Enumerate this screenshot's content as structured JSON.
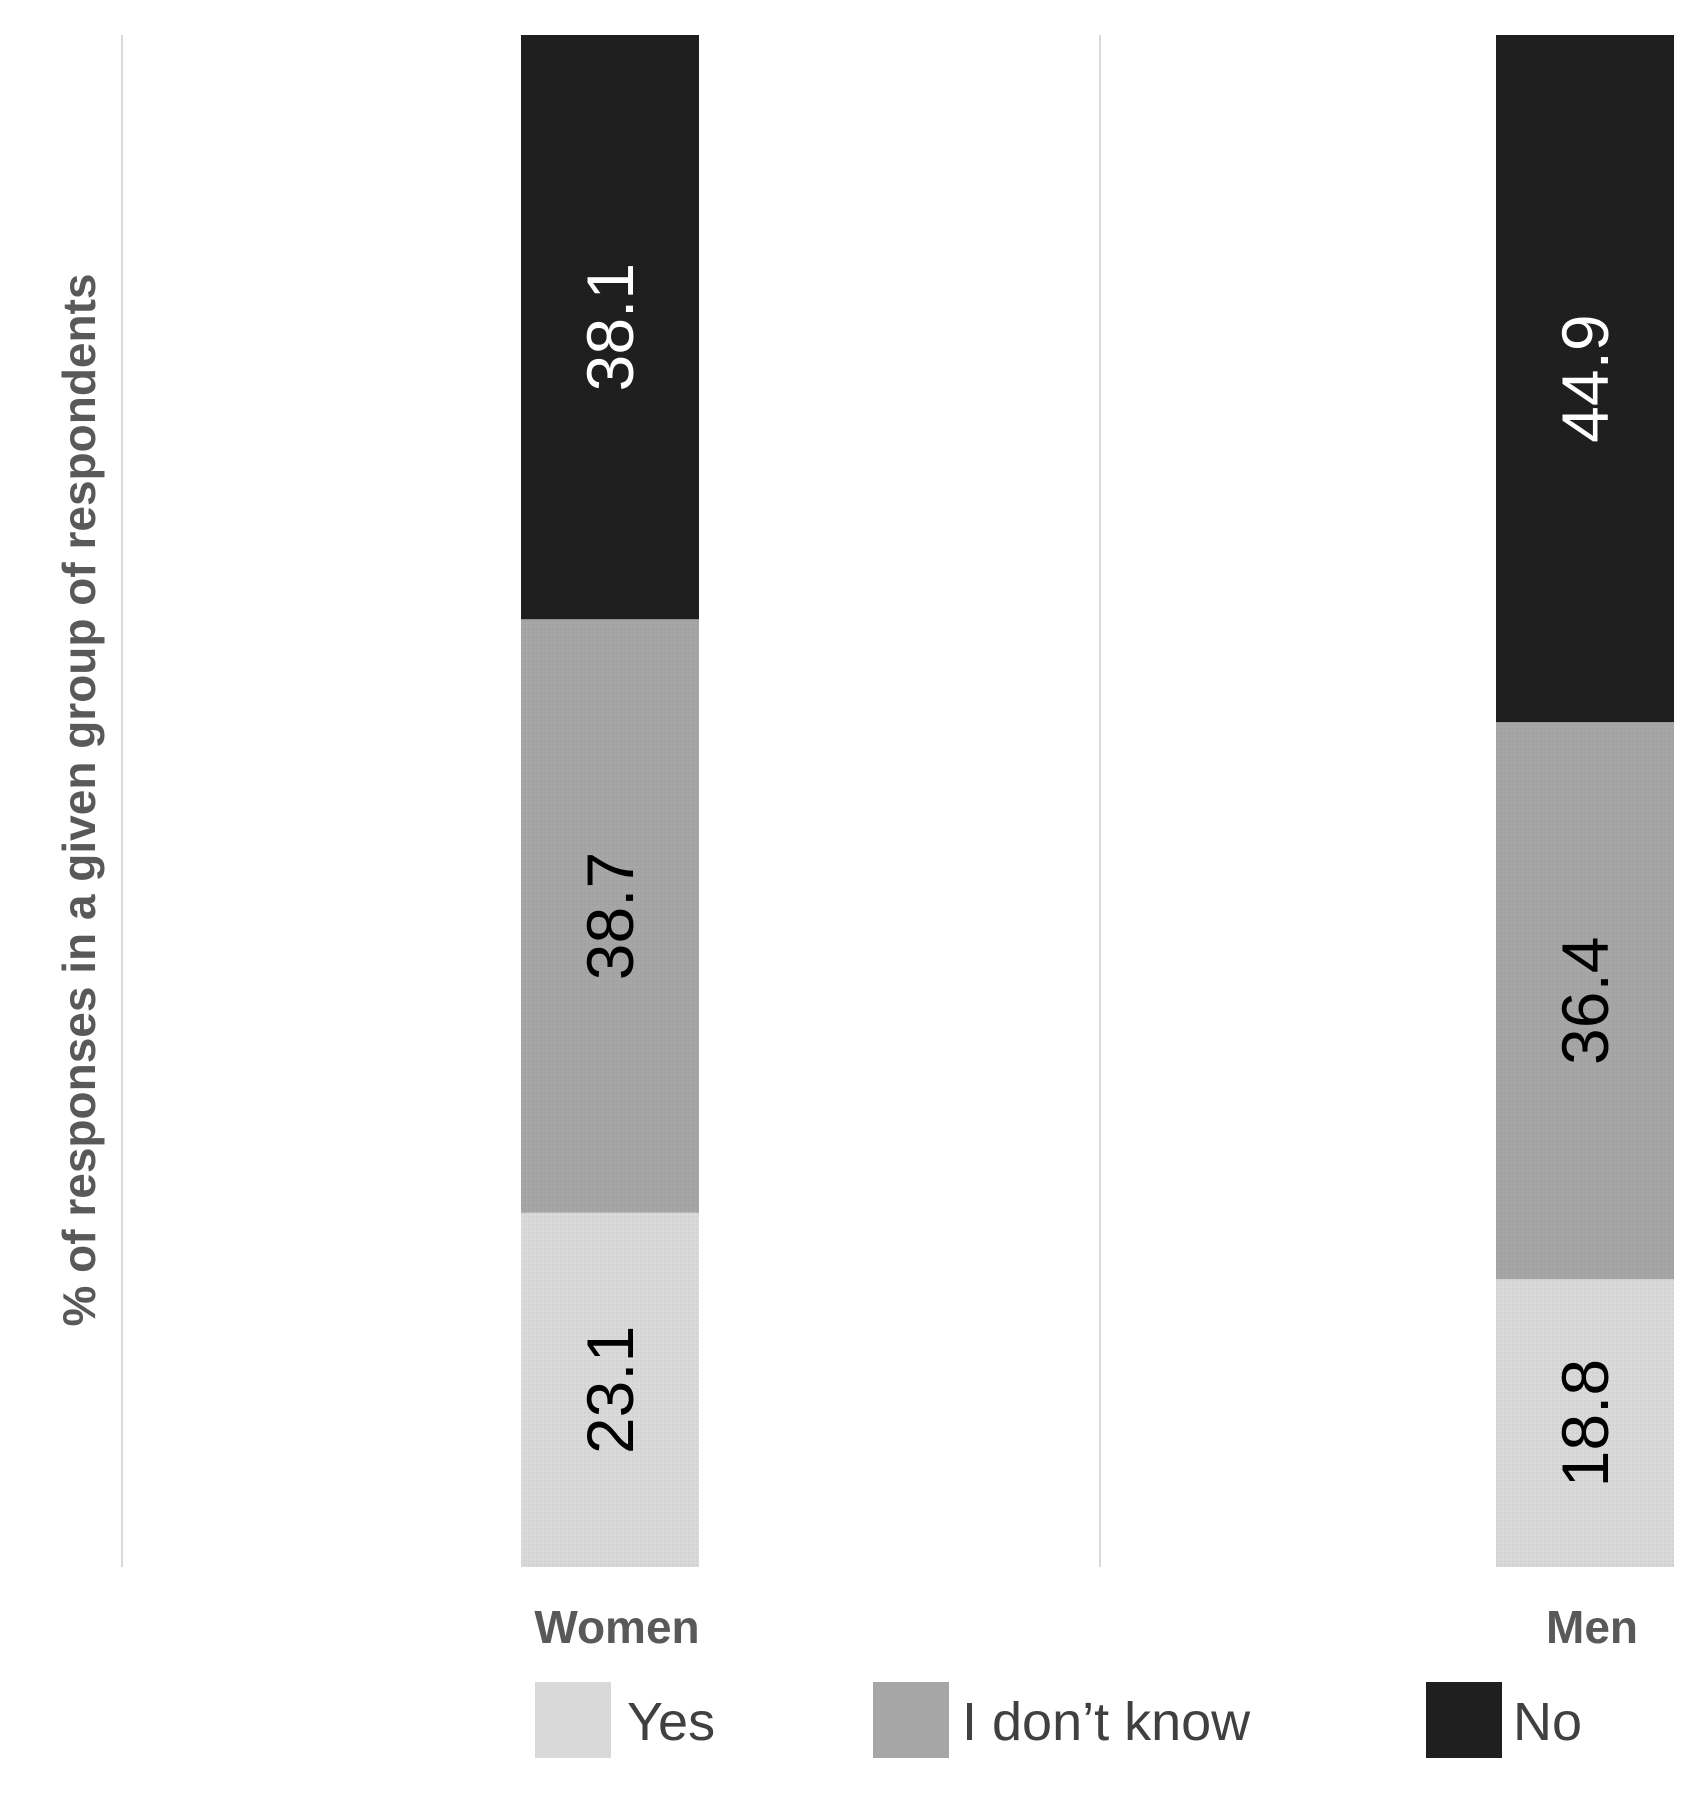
{
  "chart_data": {
    "type": "bar",
    "stacked": true,
    "normalized_percent": true,
    "ylabel": "% of responses in a given group of respondents",
    "categories": [
      "Women",
      "Men"
    ],
    "series": [
      {
        "name": "Yes",
        "values": [
          23.1,
          18.8
        ],
        "color": "#d9d9d9",
        "label_color": "#000000"
      },
      {
        "name": "I don’t know",
        "values": [
          38.7,
          36.4
        ],
        "color": "#a6a6a6",
        "label_color": "#000000"
      },
      {
        "name": "No",
        "values": [
          38.1,
          44.9
        ],
        "color": "#1f1f1f",
        "label_color": "#ffffff"
      }
    ],
    "data_labels": [
      [
        "23.1",
        "18.8"
      ],
      [
        "38.7",
        "36.4"
      ],
      [
        "38.1",
        "44.9"
      ]
    ],
    "ylim": [
      0,
      100
    ],
    "grid": "vertical lines between categories",
    "legend_position": "bottom"
  }
}
